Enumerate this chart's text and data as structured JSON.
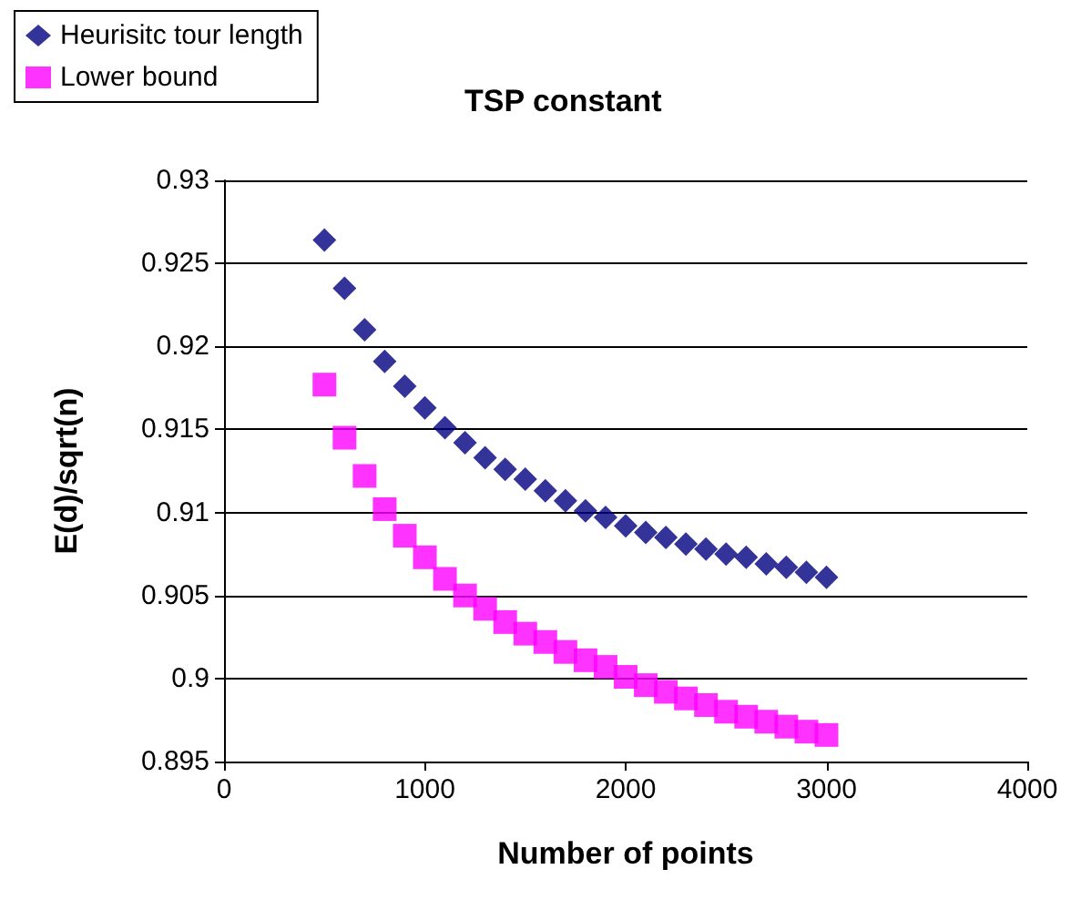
{
  "chart_data": {
    "type": "scatter",
    "title": "TSP constant",
    "xlabel": "Number of points",
    "ylabel": "E(d)/sqrt(n)",
    "x": [
      500,
      600,
      700,
      800,
      900,
      1000,
      1100,
      1200,
      1300,
      1400,
      1500,
      1600,
      1700,
      1800,
      1900,
      2000,
      2100,
      2200,
      2300,
      2400,
      2500,
      2600,
      2700,
      2800,
      2900,
      3000
    ],
    "series": [
      {
        "name": "Heurisitc tour length",
        "color": "#000080",
        "marker": "diamond",
        "values": [
          0.9264,
          0.9235,
          0.921,
          0.9191,
          0.9176,
          0.9163,
          0.9151,
          0.9142,
          0.9133,
          0.9126,
          0.912,
          0.9113,
          0.9107,
          0.9101,
          0.9097,
          0.9092,
          0.9088,
          0.9085,
          0.9081,
          0.9078,
          0.9075,
          0.9073,
          0.9069,
          0.9067,
          0.9064,
          0.9061
        ]
      },
      {
        "name": "Lower bound",
        "color": "#ff00ff",
        "marker": "square",
        "values": [
          0.9177,
          0.9145,
          0.9122,
          0.9102,
          0.9086,
          0.9073,
          0.906,
          0.905,
          0.9042,
          0.9034,
          0.9027,
          0.9022,
          0.9016,
          0.9011,
          0.9007,
          0.9001,
          0.8996,
          0.8992,
          0.8988,
          0.8984,
          0.898,
          0.8977,
          0.8974,
          0.8971,
          0.8968,
          0.8966
        ]
      }
    ],
    "xlim": [
      0,
      4000
    ],
    "xticks": [
      0,
      1000,
      2000,
      3000,
      4000
    ],
    "ylim": [
      0.895,
      0.93
    ],
    "yticks": [
      0.895,
      0.9,
      0.905,
      0.91,
      0.915,
      0.92,
      0.925,
      0.93
    ],
    "grid": "y",
    "legend": "top left"
  }
}
